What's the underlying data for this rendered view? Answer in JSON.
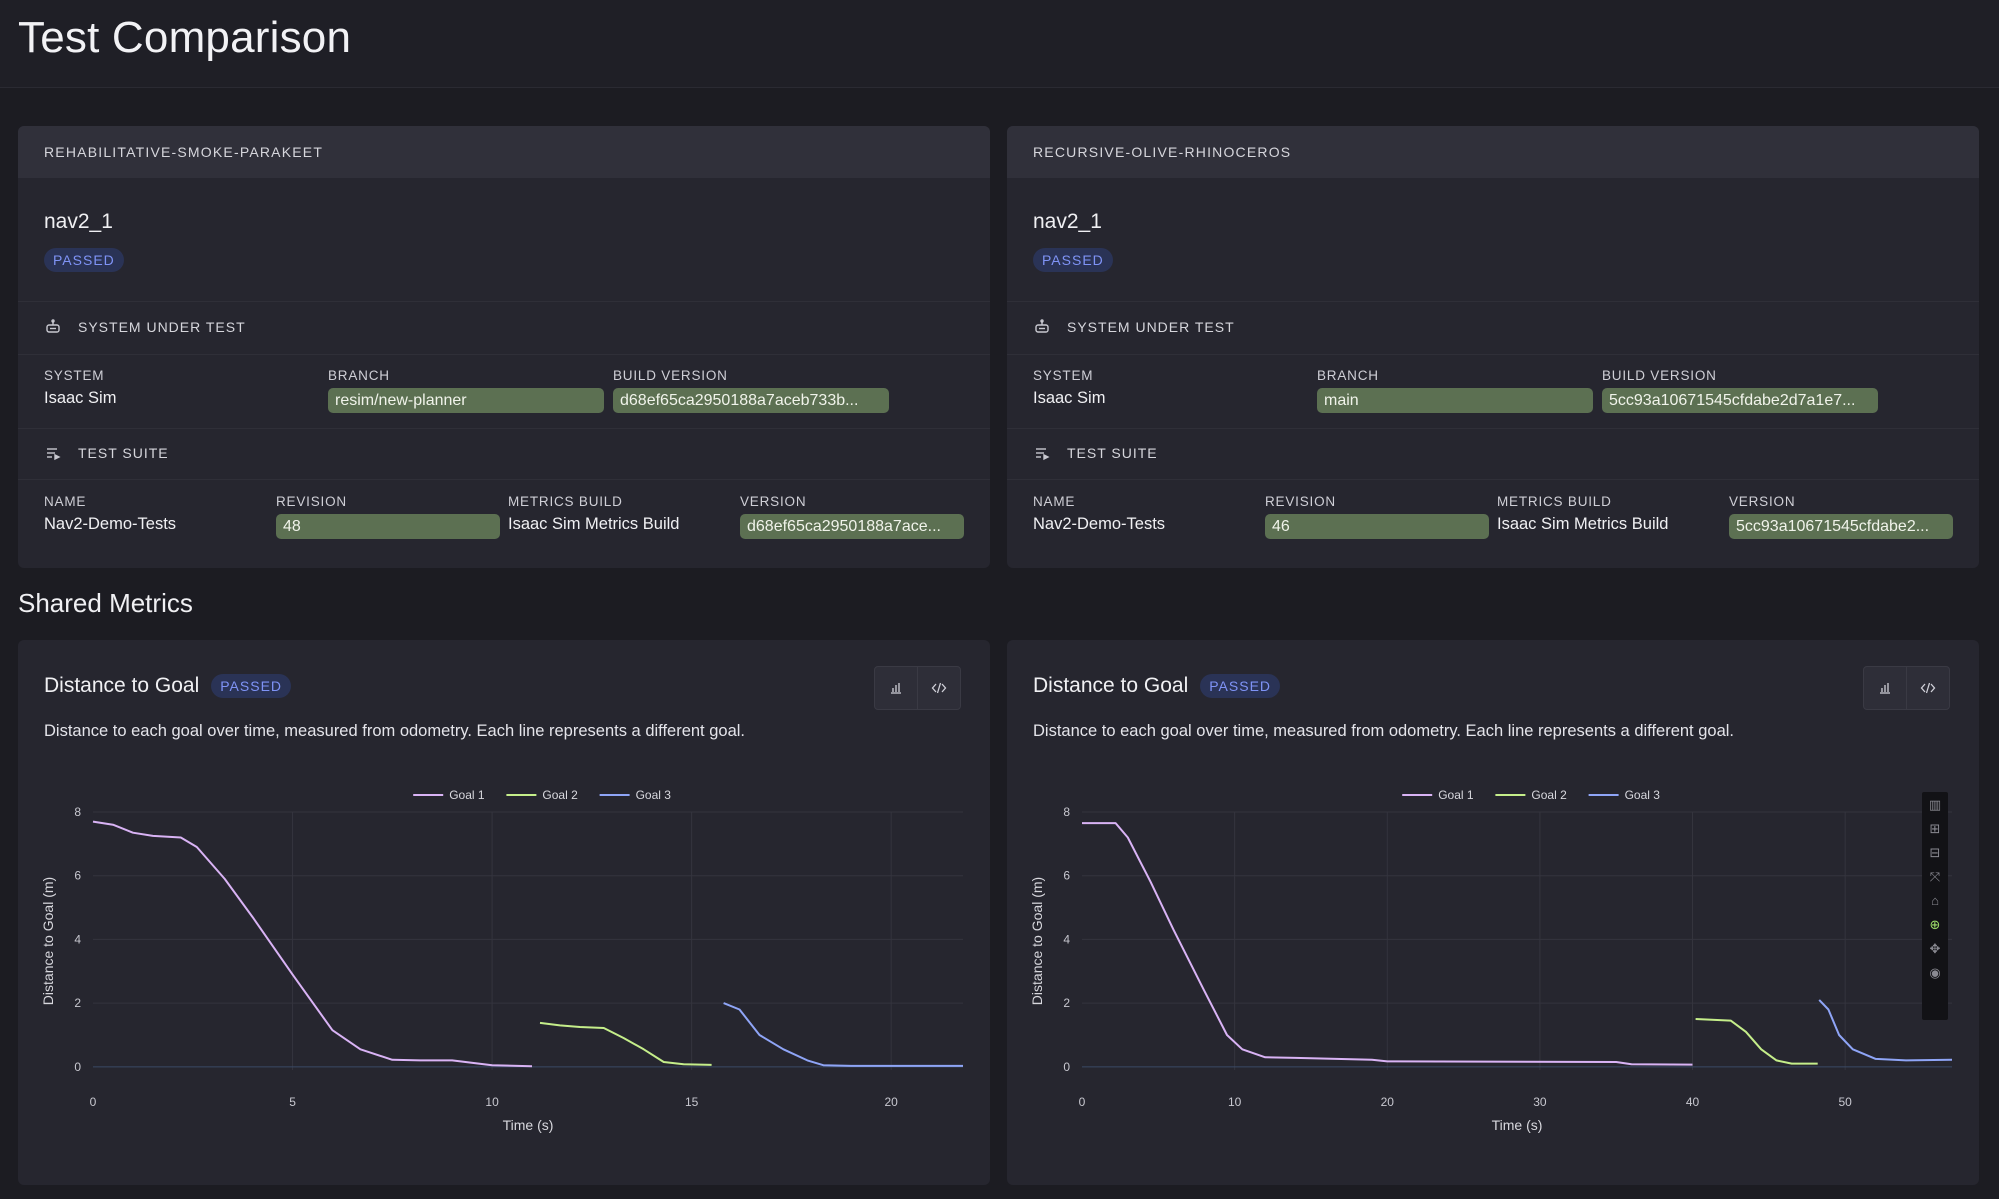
{
  "page": {
    "title": "Test Comparison"
  },
  "shared_title": "Shared Metrics",
  "panels": [
    {
      "batch_name": "REHABILITATIVE-SMOKE-PARAKEET",
      "test_name": "nav2_1",
      "status": "PASSED",
      "sut": {
        "heading": "SYSTEM UNDER TEST",
        "system_label": "SYSTEM",
        "system": "Isaac Sim",
        "branch_label": "BRANCH",
        "branch": "resim/new-planner",
        "build_label": "BUILD VERSION",
        "build": "d68ef65ca2950188a7aceb733b..."
      },
      "suite": {
        "heading": "TEST SUITE",
        "name_label": "NAME",
        "name": "Nav2-Demo-Tests",
        "revision_label": "REVISION",
        "revision": "48",
        "metrics_label": "METRICS BUILD",
        "metrics": "Isaac Sim Metrics Build",
        "version_label": "VERSION",
        "version": "d68ef65ca2950188a7ace..."
      },
      "metric": {
        "title": "Distance to Goal",
        "status": "PASSED",
        "description": "Distance to each goal over time, measured from odometry. Each line represents a different goal."
      }
    },
    {
      "batch_name": "RECURSIVE-OLIVE-RHINOCEROS",
      "test_name": "nav2_1",
      "status": "PASSED",
      "sut": {
        "heading": "SYSTEM UNDER TEST",
        "system_label": "SYSTEM",
        "system": "Isaac Sim",
        "branch_label": "BRANCH",
        "branch": "main",
        "build_label": "BUILD VERSION",
        "build": "5cc93a10671545cfdabe2d7a1e7..."
      },
      "suite": {
        "heading": "TEST SUITE",
        "name_label": "NAME",
        "name": "Nav2-Demo-Tests",
        "revision_label": "REVISION",
        "revision": "46",
        "metrics_label": "METRICS BUILD",
        "metrics": "Isaac Sim Metrics Build",
        "version_label": "VERSION",
        "version": "5cc93a10671545cfdabe2..."
      },
      "metric": {
        "title": "Distance to Goal",
        "status": "PASSED",
        "description": "Distance to each goal over time, measured from odometry. Each line represents a different goal."
      }
    }
  ],
  "icons": {
    "chart": "bar-chart-icon",
    "code": "code-icon",
    "sut": "robot-icon",
    "suite": "playlist-icon"
  },
  "chart_data": [
    {
      "type": "line",
      "xlabel": "Time (s)",
      "ylabel": "Distance to Goal (m)",
      "xlim": [
        0,
        21.8
      ],
      "ylim": [
        -0.1,
        8.0
      ],
      "xticks": [
        0,
        5,
        10,
        15,
        20
      ],
      "yticks": [
        0,
        2,
        4,
        6,
        8
      ],
      "grid": true,
      "legend": "top-center",
      "series": [
        {
          "name": "Goal 1",
          "color": "#d9b3f5",
          "x": [
            0,
            0.5,
            1,
            1.5,
            2.2,
            2.6,
            3.3,
            4,
            5,
            6,
            6.7,
            7.5,
            8.2,
            9,
            10,
            11
          ],
          "y": [
            7.7,
            7.6,
            7.35,
            7.25,
            7.2,
            6.9,
            5.9,
            4.7,
            2.9,
            1.15,
            0.55,
            0.22,
            0.2,
            0.2,
            0.05,
            0.02
          ]
        },
        {
          "name": "Goal 2",
          "color": "#c5ee8a",
          "x": [
            11.2,
            11.7,
            12.2,
            12.8,
            13.3,
            13.8,
            14.3,
            14.8,
            15.5
          ],
          "y": [
            1.38,
            1.3,
            1.25,
            1.22,
            0.9,
            0.55,
            0.15,
            0.08,
            0.06
          ]
        },
        {
          "name": "Goal 3",
          "color": "#8fa5f7",
          "x": [
            15.8,
            16.2,
            16.7,
            17.3,
            17.9,
            18.3,
            19,
            20,
            21.8
          ],
          "y": [
            2.0,
            1.8,
            1.0,
            0.55,
            0.2,
            0.05,
            0.03,
            0.03,
            0.03
          ]
        }
      ]
    },
    {
      "type": "line",
      "xlabel": "Time (s)",
      "ylabel": "Distance to Goal (m)",
      "xlim": [
        0,
        57
      ],
      "ylim": [
        -0.1,
        8.0
      ],
      "xticks": [
        0,
        10,
        20,
        30,
        40,
        50
      ],
      "yticks": [
        0,
        2,
        4,
        6,
        8
      ],
      "grid": true,
      "legend": "top-center",
      "series": [
        {
          "name": "Goal 1",
          "color": "#d9b3f5",
          "x": [
            0,
            2.2,
            3,
            4.5,
            6,
            8,
            9.5,
            10.5,
            12,
            14,
            19,
            20,
            35,
            36,
            40
          ],
          "y": [
            7.65,
            7.65,
            7.2,
            5.8,
            4.3,
            2.4,
            1.0,
            0.55,
            0.3,
            0.28,
            0.22,
            0.17,
            0.15,
            0.08,
            0.07
          ]
        },
        {
          "name": "Goal 2",
          "color": "#c5ee8a",
          "x": [
            40.2,
            42.5,
            43.5,
            44.5,
            45.5,
            46.5,
            48.2
          ],
          "y": [
            1.5,
            1.45,
            1.1,
            0.55,
            0.2,
            0.1,
            0.1
          ]
        },
        {
          "name": "Goal 3",
          "color": "#8fa5f7",
          "x": [
            48.3,
            48.9,
            49.6,
            50.5,
            52,
            54,
            57
          ],
          "y": [
            2.1,
            1.8,
            1.0,
            0.55,
            0.25,
            0.2,
            0.22
          ]
        }
      ]
    }
  ]
}
